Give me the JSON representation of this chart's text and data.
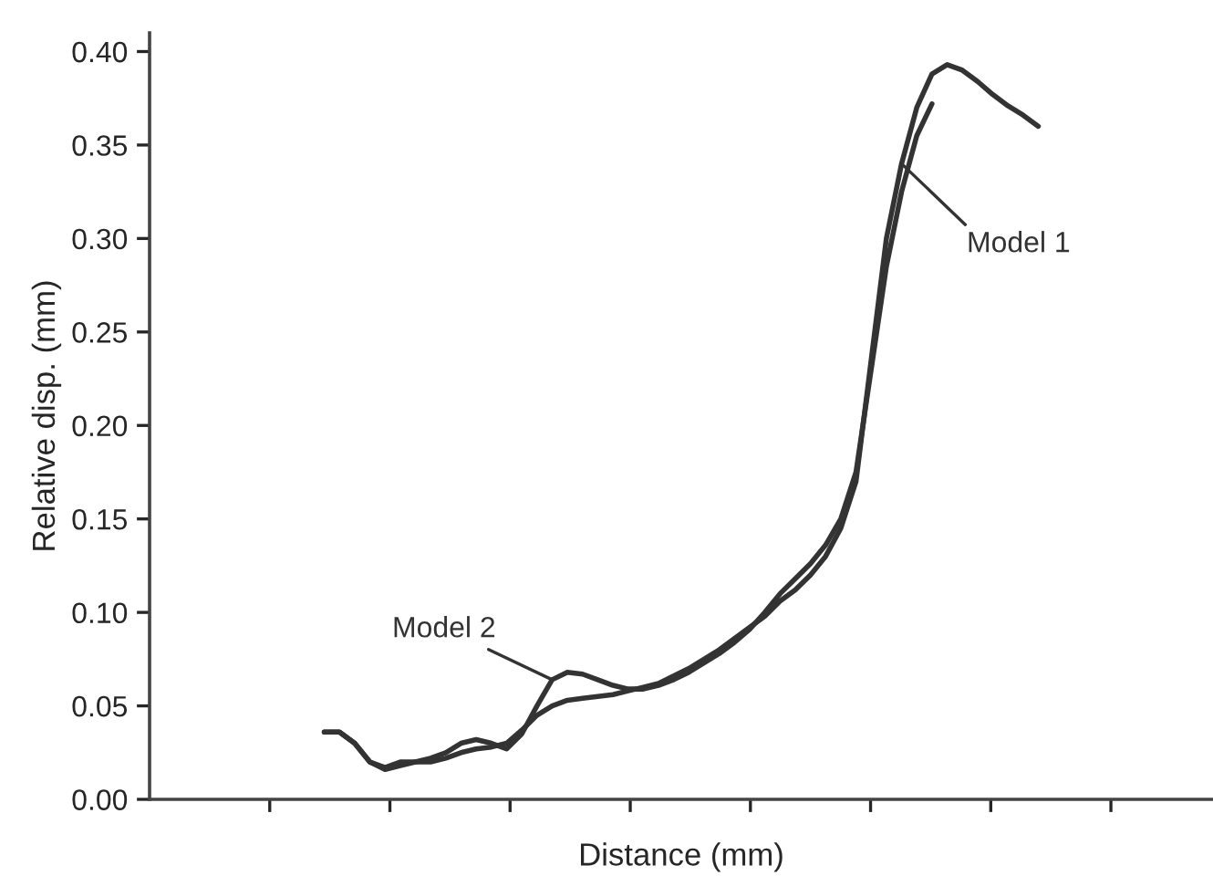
{
  "chart_data": {
    "type": "line",
    "xlabel": "Distance (mm)",
    "ylabel": "Relative disp. (mm)",
    "categories": [
      null,
      null,
      null,
      null,
      null,
      null,
      null,
      null,
      null,
      null,
      null,
      null,
      null,
      null,
      null,
      null,
      null,
      null,
      null,
      null,
      null,
      null,
      null,
      null,
      null,
      null,
      null,
      null,
      null,
      null,
      null,
      null,
      null,
      null,
      null,
      null,
      null,
      null,
      null,
      null,
      null,
      null,
      null,
      null,
      null,
      null,
      null,
      null,
      null,
      null,
      null,
      null,
      null,
      null,
      null,
      null,
      null,
      null,
      null,
      null,
      null,
      null,
      null,
      null,
      null,
      null,
      null,
      null,
      null,
      null
    ],
    "series": [
      {
        "name": "Model 1",
        "color": "#333333",
        "values": [
          null,
          null,
          null,
          null,
          null,
          null,
          null,
          null,
          null,
          null,
          null,
          0.036,
          0.036,
          0.03,
          0.02,
          0.016,
          0.018,
          0.02,
          0.02,
          0.022,
          0.025,
          0.027,
          0.028,
          0.03,
          0.037,
          0.045,
          0.05,
          0.053,
          0.054,
          0.055,
          0.056,
          0.058,
          0.06,
          0.062,
          0.066,
          0.07,
          0.075,
          0.08,
          0.086,
          0.092,
          0.098,
          0.106,
          0.112,
          0.12,
          0.13,
          0.145,
          0.17,
          0.235,
          0.3,
          0.34,
          0.37,
          0.388,
          0.393,
          0.39,
          0.384,
          0.377,
          0.371,
          0.366,
          0.36,
          null,
          null,
          null,
          null,
          null,
          null,
          null,
          null,
          null,
          null,
          null
        ]
      },
      {
        "name": "Model 2",
        "color": "#333333",
        "values": [
          null,
          null,
          null,
          null,
          null,
          null,
          null,
          null,
          null,
          null,
          null,
          0.036,
          0.036,
          0.03,
          0.02,
          0.017,
          0.02,
          0.02,
          0.022,
          0.025,
          0.03,
          0.032,
          0.03,
          0.027,
          0.035,
          0.05,
          0.064,
          0.068,
          0.067,
          0.064,
          0.061,
          0.059,
          0.059,
          0.061,
          0.064,
          0.068,
          0.073,
          0.078,
          0.084,
          0.091,
          0.1,
          0.11,
          0.118,
          0.126,
          0.136,
          0.15,
          0.175,
          0.23,
          0.285,
          0.325,
          0.355,
          0.372,
          null,
          null,
          null,
          null,
          null,
          null,
          null,
          null,
          null,
          null,
          null,
          null,
          null,
          null,
          null,
          null,
          null,
          null
        ]
      }
    ],
    "ylim": [
      0,
      0.41
    ],
    "yticks": [
      {
        "value": 0,
        "label": "0.00"
      },
      {
        "value": 0.05,
        "label": "0.05"
      },
      {
        "value": 0.1,
        "label": "0.10"
      },
      {
        "value": 0.15,
        "label": "0.15"
      },
      {
        "value": 0.2,
        "label": "0.20"
      },
      {
        "value": 0.25,
        "label": "0.25"
      },
      {
        "value": 0.3,
        "label": "0.30"
      },
      {
        "value": 0.35,
        "label": "0.35"
      },
      {
        "value": 0.4,
        "label": "0.40"
      }
    ],
    "tick_labels": "y",
    "grid": false,
    "legend": false,
    "marker": "none",
    "line_style": "solid"
  }
}
